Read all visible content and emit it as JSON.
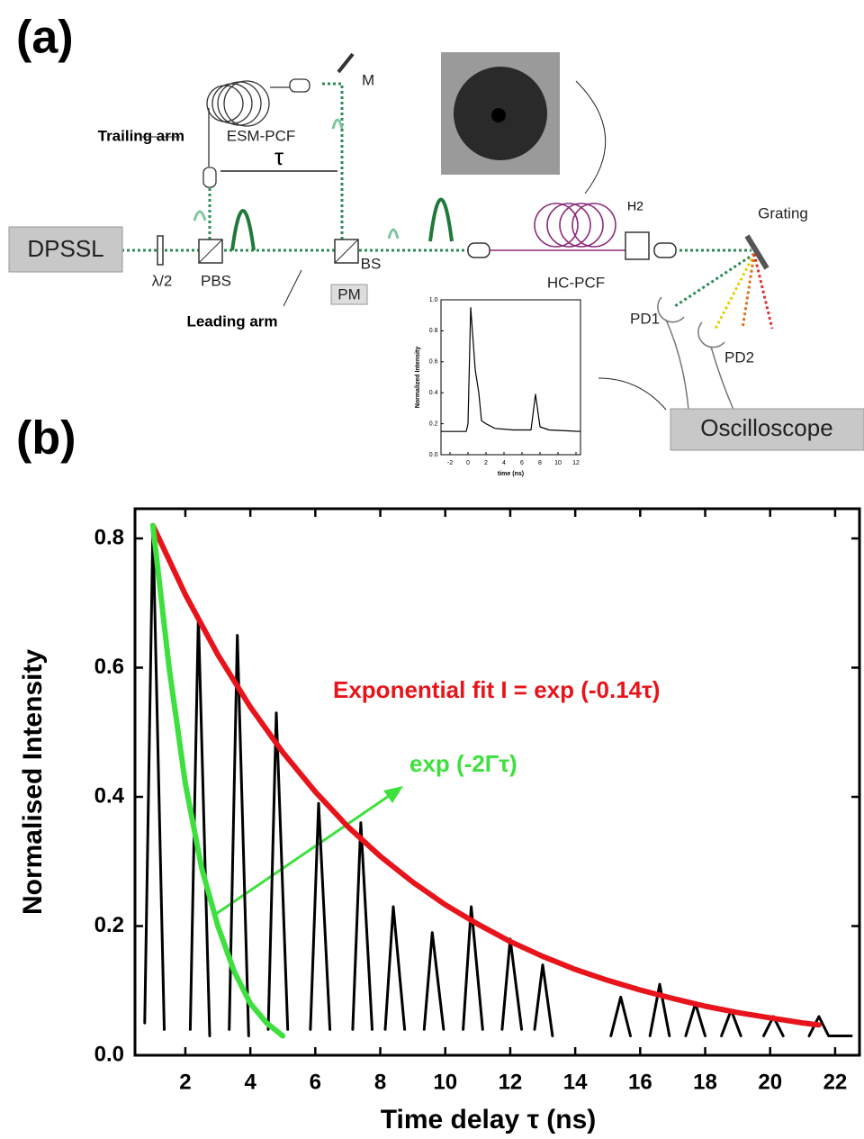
{
  "diagram": {
    "label_a": "(a)",
    "label_b": "(b)",
    "trailing_arm": "Trailing arm",
    "esm_pcf": "ESM-PCF",
    "tau": "τ",
    "mirror": "M",
    "laser": "DPSSL",
    "waveplate": "λ/2",
    "pbs": "PBS",
    "bs": "BS",
    "pm": "PM",
    "leading_arm": "Leading arm",
    "hc_pcf": "HC-PCF",
    "h2": "H2",
    "grating": "Grating",
    "pd1": "PD1",
    "pd2": "PD2",
    "oscilloscope": "Oscilloscope"
  },
  "chart_data": [
    {
      "type": "line",
      "x_label": "time (ns)",
      "y_label": "Normalized Intensity",
      "xlim": [
        -3,
        12.5
      ],
      "ylim": [
        0,
        1.0
      ],
      "xticks": [
        -2,
        0,
        2,
        4,
        6,
        8,
        10,
        12
      ],
      "yticks": [
        {
          "value": 0,
          "label": "0.0"
        },
        0.2,
        0.4,
        0.6,
        0.8,
        {
          "value": 1.0,
          "label": "1.0"
        }
      ],
      "series": [
        {
          "color": "#000000",
          "x": [
            -3,
            -0.2,
            0,
            0.3,
            0.8,
            1.2,
            1.5,
            2,
            3,
            5,
            7,
            7.5,
            8,
            9,
            12.5
          ],
          "values": [
            0.15,
            0.15,
            0.2,
            0.95,
            0.55,
            0.4,
            0.22,
            0.2,
            0.17,
            0.16,
            0.16,
            0.39,
            0.18,
            0.16,
            0.15
          ]
        }
      ]
    },
    {
      "type": "line",
      "x_label": "Time delay τ (ns)",
      "y_label": "Normalised Intensity",
      "xlim": [
        0.45,
        22.75
      ],
      "ylim": [
        0,
        0.846
      ],
      "xticks": [
        2,
        4,
        6,
        8,
        10,
        12,
        14,
        16,
        18,
        20,
        22
      ],
      "yticks": [
        {
          "value": 0,
          "label": "0.0"
        },
        0.2,
        0.4,
        0.6,
        0.8
      ],
      "series": [
        {
          "color": "#000000",
          "x": [
            0.75,
            1.0,
            1.35,
            null,
            2.15,
            2.4,
            2.75,
            null,
            3.35,
            3.6,
            3.95,
            null,
            4.55,
            4.8,
            5.15,
            null,
            5.85,
            6.1,
            6.45,
            null,
            7.15,
            7.4,
            7.75,
            null,
            8.15,
            8.4,
            8.75,
            null,
            9.35,
            9.6,
            9.95,
            null,
            10.55,
            10.8,
            11.15,
            null,
            11.75,
            12.0,
            12.35,
            null,
            12.75,
            13.0,
            13.3,
            null,
            15.1,
            15.4,
            15.7,
            null,
            16.3,
            16.6,
            16.9,
            null,
            17.4,
            17.7,
            18.0,
            null,
            18.5,
            18.8,
            19.1,
            null,
            19.8,
            20.1,
            20.4,
            null,
            21.2,
            21.5,
            21.8,
            22.5
          ],
          "values": [
            0.05,
            0.82,
            0.04,
            null,
            0.04,
            0.68,
            0.03,
            null,
            0.04,
            0.65,
            0.03,
            null,
            0.04,
            0.53,
            0.04,
            null,
            0.04,
            0.39,
            0.04,
            null,
            0.04,
            0.36,
            0.04,
            null,
            0.04,
            0.23,
            0.04,
            null,
            0.04,
            0.19,
            0.04,
            null,
            0.04,
            0.23,
            0.04,
            null,
            0.04,
            0.18,
            0.04,
            null,
            0.04,
            0.14,
            0.03,
            null,
            0.03,
            0.09,
            0.03,
            null,
            0.03,
            0.11,
            0.03,
            null,
            0.03,
            0.08,
            0.03,
            null,
            0.03,
            0.07,
            0.03,
            null,
            0.03,
            0.06,
            0.03,
            null,
            0.03,
            0.06,
            0.03,
            0.03
          ]
        },
        {
          "color": "#e8141b",
          "x": [
            1,
            2,
            3,
            4,
            5,
            6,
            7,
            8,
            9,
            10,
            11,
            12,
            13,
            14,
            15,
            16,
            17,
            18,
            19,
            20,
            21,
            21.5
          ],
          "values": [
            0.82,
            0.713,
            0.62,
            0.539,
            0.469,
            0.408,
            0.354,
            0.308,
            0.268,
            0.233,
            0.203,
            0.176,
            0.153,
            0.133,
            0.116,
            0.101,
            0.088,
            0.076,
            0.066,
            0.058,
            0.05,
            0.047
          ]
        },
        {
          "color": "#3ee03e",
          "x": [
            1,
            1.5,
            2,
            2.5,
            3,
            3.5,
            4,
            4.5,
            5
          ],
          "values": [
            0.82,
            0.6,
            0.42,
            0.29,
            0.2,
            0.13,
            0.08,
            0.05,
            0.03
          ]
        }
      ],
      "annotations": [
        {
          "text": "Exponential fit I = exp (-0.14τ)",
          "color": "#e8141b"
        },
        {
          "text": "exp (-2Γτ)",
          "color": "#3ee03e"
        }
      ]
    }
  ]
}
